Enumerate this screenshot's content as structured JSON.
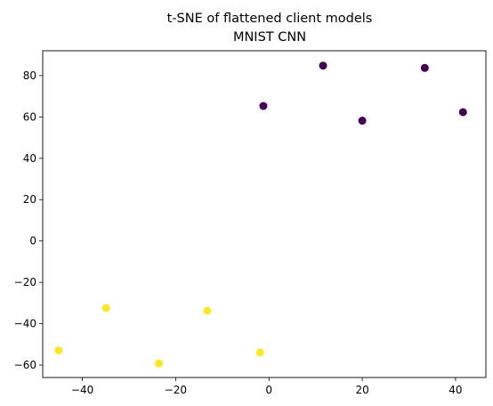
{
  "chart_data": {
    "type": "scatter",
    "title": "t-SNE of flattened client models",
    "subtitle": "MNIST CNN",
    "xlabel": "",
    "ylabel": "",
    "xlim": [
      -48.5,
      46.5
    ],
    "ylim": [
      -66,
      92
    ],
    "xticks": [
      -40,
      -20,
      0,
      20,
      40
    ],
    "yticks": [
      -60,
      -40,
      -20,
      0,
      20,
      40,
      60,
      80
    ],
    "grid": false,
    "series": [
      {
        "color": "#440154",
        "points": [
          {
            "x": -1.2,
            "y": 65.3
          },
          {
            "x": 11.6,
            "y": 84.8
          },
          {
            "x": 20.0,
            "y": 58.2
          },
          {
            "x": 33.4,
            "y": 83.7
          },
          {
            "x": 41.6,
            "y": 62.3
          }
        ]
      },
      {
        "color": "#fde725",
        "points": [
          {
            "x": -45.1,
            "y": -52.9
          },
          {
            "x": -34.9,
            "y": -32.4
          },
          {
            "x": -23.6,
            "y": -59.2
          },
          {
            "x": -13.2,
            "y": -33.7
          },
          {
            "x": -1.9,
            "y": -53.9
          }
        ]
      }
    ]
  }
}
